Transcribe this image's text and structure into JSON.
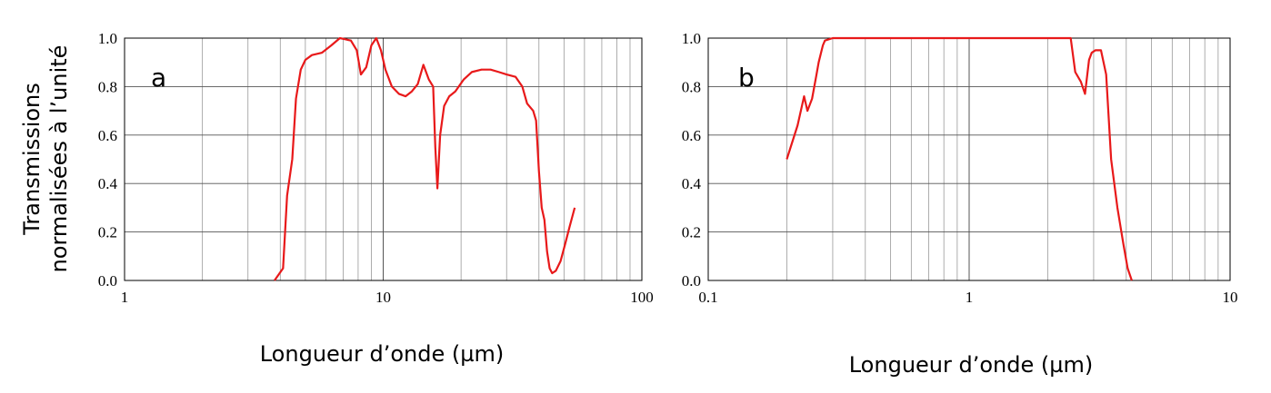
{
  "ylabel": "Transmissions normalisées à l’unité",
  "ylabel_lines": [
    "Transmissions",
    "normalisées à l’unité"
  ],
  "chart_data": [
    {
      "type": "line",
      "panel_label": "a",
      "xlabel": "Longueur d’onde (µm)",
      "xscale": "log",
      "xlim": [
        1,
        100
      ],
      "ylim": [
        0,
        1.0
      ],
      "x_ticks": [
        1,
        10,
        100
      ],
      "x_tick_labels": [
        "1",
        "10",
        "100"
      ],
      "y_ticks": [
        0,
        0.2,
        0.4,
        0.6,
        0.8,
        1.0
      ],
      "y_tick_labels": [
        "0.0",
        "0.2",
        "0.4",
        "0.6",
        "0.8",
        "1.0"
      ],
      "grid": true,
      "line_color": "#e8191a",
      "series": [
        {
          "x": [
            3.8,
            4.1,
            4.25,
            4.45,
            4.6,
            4.8,
            5.0,
            5.3,
            5.8,
            6.3,
            6.8,
            7.5,
            7.9,
            8.2,
            8.6,
            9.0,
            9.4,
            9.8,
            10.2,
            10.8,
            11.5,
            12.2,
            12.9,
            13.6,
            14.3,
            15.0,
            15.6,
            15.9,
            16.2,
            16.6,
            17.2,
            18.0,
            19.0,
            20.5,
            22.0,
            24.0,
            26.0,
            28.0,
            30.0,
            32.5,
            34.5,
            36.0,
            38.0,
            39.0,
            40.0,
            41.0,
            42.0,
            43.0,
            44.0,
            45.0,
            46.5,
            48.5,
            50.5,
            52.5,
            55.0
          ],
          "y": [
            0.0,
            0.05,
            0.35,
            0.5,
            0.75,
            0.87,
            0.91,
            0.93,
            0.94,
            0.97,
            1.0,
            0.99,
            0.95,
            0.85,
            0.88,
            0.97,
            1.0,
            0.95,
            0.87,
            0.8,
            0.77,
            0.76,
            0.78,
            0.81,
            0.89,
            0.83,
            0.8,
            0.55,
            0.38,
            0.6,
            0.72,
            0.76,
            0.78,
            0.83,
            0.86,
            0.87,
            0.87,
            0.86,
            0.85,
            0.84,
            0.8,
            0.73,
            0.7,
            0.66,
            0.45,
            0.3,
            0.25,
            0.12,
            0.05,
            0.03,
            0.04,
            0.08,
            0.15,
            0.22,
            0.3
          ]
        }
      ]
    },
    {
      "type": "line",
      "panel_label": "b",
      "xlabel": "Longueur d’onde (µm)",
      "xscale": "log",
      "xlim": [
        0.1,
        10
      ],
      "ylim": [
        0,
        1.0
      ],
      "x_ticks": [
        0.1,
        1,
        10
      ],
      "x_tick_labels": [
        "0.1",
        "1",
        "10"
      ],
      "y_ticks": [
        0,
        0.2,
        0.4,
        0.6,
        0.8,
        1.0
      ],
      "y_tick_labels": [
        "0.0",
        "0.2",
        "0.4",
        "0.6",
        "0.8",
        "1.0"
      ],
      "grid": true,
      "line_color": "#e8191a",
      "series": [
        {
          "x": [
            0.2,
            0.22,
            0.233,
            0.24,
            0.25,
            0.26,
            0.265,
            0.275,
            0.28,
            0.3,
            0.5,
            1.0,
            1.5,
            2.0,
            2.45,
            2.55,
            2.68,
            2.78,
            2.88,
            2.95,
            3.05,
            3.2,
            3.35,
            3.5,
            3.7,
            3.9,
            4.05,
            4.2
          ],
          "y": [
            0.5,
            0.64,
            0.76,
            0.7,
            0.75,
            0.85,
            0.9,
            0.97,
            0.99,
            1.0,
            1.0,
            1.0,
            1.0,
            1.0,
            1.0,
            0.86,
            0.82,
            0.77,
            0.91,
            0.94,
            0.95,
            0.95,
            0.85,
            0.5,
            0.3,
            0.15,
            0.05,
            0.0
          ]
        }
      ]
    }
  ]
}
